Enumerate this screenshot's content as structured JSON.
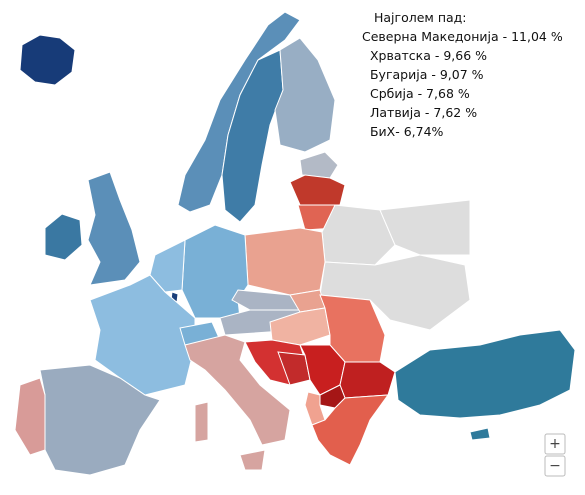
{
  "annotation": {
    "title": "Најголем пад:",
    "lines": [
      "Северна Македонија - 11,04 %",
      " Хрватска - 9,66 %",
      " Бугарија - 9,07 %",
      " Србија - 7,68 %",
      " Латвија - 7,62 %",
      " БиХ- 6,74%"
    ]
  },
  "controls": {
    "zoom_in": "+",
    "zoom_out": "−"
  }
}
